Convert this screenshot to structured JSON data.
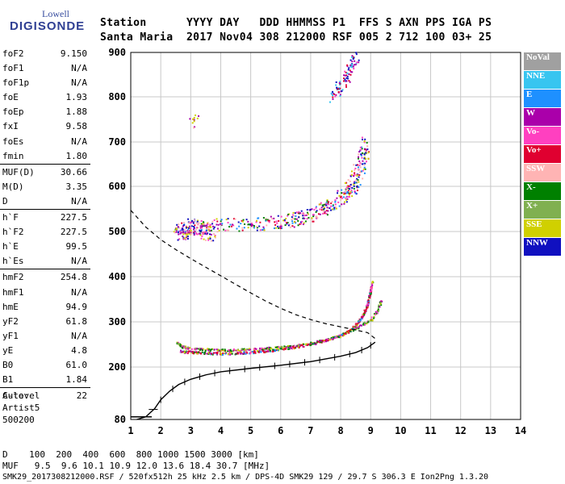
{
  "logo": {
    "line1": "Lowell",
    "line2": "DIGISONDE"
  },
  "header": {
    "row1": "Station      YYYY DAY   DDD HHMMSS P1  FFS S AXN PPS IGA PS",
    "row2": "Santa Maria  2017 Nov04 308 212000 RSF 005 2 712 100 03+ 25"
  },
  "params": [
    {
      "name": "foF2",
      "value": "9.150"
    },
    {
      "name": "foF1",
      "value": "N/A"
    },
    {
      "name": "foF1p",
      "value": "N/A"
    },
    {
      "name": "foE",
      "value": "1.93"
    },
    {
      "name": "foEp",
      "value": "1.88"
    },
    {
      "name": "fxI",
      "value": "9.58"
    },
    {
      "name": "foEs",
      "value": "N/A"
    },
    {
      "name": "fmin",
      "value": "1.80"
    },
    {
      "name": "MUF(D)",
      "value": "30.66"
    },
    {
      "name": "M(D)",
      "value": "3.35"
    },
    {
      "name": "D",
      "value": "N/A"
    },
    {
      "name": "h`F",
      "value": "227.5"
    },
    {
      "name": "h`F2",
      "value": "227.5"
    },
    {
      "name": "h`E",
      "value": "99.5"
    },
    {
      "name": "h`Es",
      "value": "N/A"
    },
    {
      "name": "hmF2",
      "value": "254.8"
    },
    {
      "name": "hmF1",
      "value": "N/A"
    },
    {
      "name": "hmE",
      "value": "94.9"
    },
    {
      "name": "yF2",
      "value": "61.8"
    },
    {
      "name": "yF1",
      "value": "N/A"
    },
    {
      "name": "yE",
      "value": "4.8"
    },
    {
      "name": "B0",
      "value": "61.0"
    },
    {
      "name": "B1",
      "value": "1.84"
    },
    {
      "name": "C-level",
      "value": "22"
    }
  ],
  "auto": {
    "line1": "Auto:",
    "line2": "Artist5",
    "line3": "500200"
  },
  "footer": {
    "d_row": "D    100  200  400  600  800 1000 1500 3000 [km]",
    "muf_row": "MUF   9.5  9.6 10.1 10.9 12.0 13.6 18.4 30.7 [MHz]",
    "info_row": "SMK29_2017308212000.RSF / 520fx512h 25 kHz 2.5 km / DPS-4D SMK29 129 / 29.7 S 306.3 E Ion2Png 1.3.20"
  },
  "legend": [
    {
      "label": "NoVal",
      "color": "#a0a0a0",
      "text": "#ffffff"
    },
    {
      "label": "NNE",
      "color": "#37c5f0",
      "text": "#ffffff"
    },
    {
      "label": "E",
      "color": "#1e90ff",
      "text": "#ffffff"
    },
    {
      "label": "W",
      "color": "#aa00aa",
      "text": "#ffffff"
    },
    {
      "label": "Vo-",
      "color": "#ff40c0",
      "text": "#ffffff"
    },
    {
      "label": "Vo+",
      "color": "#e00030",
      "text": "#ffffff"
    },
    {
      "label": "SSW",
      "color": "#ffb4b4",
      "text": "#ffffff"
    },
    {
      "label": "X-",
      "color": "#008000",
      "text": "#ffffff"
    },
    {
      "label": "X+",
      "color": "#80b050",
      "text": "#ffffff"
    },
    {
      "label": "SSE",
      "color": "#d0d000",
      "text": "#ffffff"
    },
    {
      "label": "NNW",
      "color": "#1010c0",
      "text": "#ffffff"
    }
  ],
  "chart_data": {
    "type": "scatter",
    "xlim": [
      1,
      14
    ],
    "ylim": [
      80,
      900
    ],
    "xticks": [
      1,
      2,
      3,
      4,
      5,
      6,
      7,
      8,
      9,
      10,
      11,
      12,
      13,
      14
    ],
    "yticks": [
      80,
      200,
      300,
      400,
      500,
      600,
      700,
      800,
      900
    ],
    "grid": true,
    "ordinary_trace_F": [
      [
        2.6,
        236
      ],
      [
        3.0,
        234
      ],
      [
        3.5,
        232
      ],
      [
        4.0,
        231
      ],
      [
        4.5,
        232
      ],
      [
        5.0,
        234
      ],
      [
        5.5,
        237
      ],
      [
        6.0,
        241
      ],
      [
        6.5,
        246
      ],
      [
        7.0,
        252
      ],
      [
        7.5,
        260
      ],
      [
        8.0,
        271
      ],
      [
        8.3,
        282
      ],
      [
        8.5,
        295
      ],
      [
        8.7,
        312
      ],
      [
        8.85,
        335
      ],
      [
        8.95,
        360
      ],
      [
        9.05,
        395
      ]
    ],
    "extraordinary_trace_F": [
      [
        2.5,
        256
      ],
      [
        2.7,
        246
      ],
      [
        3.0,
        242
      ],
      [
        3.5,
        240
      ],
      [
        4.0,
        239
      ],
      [
        4.5,
        239
      ],
      [
        5.0,
        240
      ],
      [
        5.5,
        242
      ],
      [
        6.0,
        245
      ],
      [
        6.5,
        249
      ],
      [
        7.0,
        254
      ],
      [
        7.5,
        261
      ],
      [
        8.0,
        272
      ],
      [
        8.5,
        287
      ],
      [
        9.0,
        306
      ],
      [
        9.2,
        325
      ],
      [
        9.35,
        350
      ]
    ],
    "second_hop": [
      [
        2.5,
        505
      ],
      [
        3.0,
        510
      ],
      [
        4.0,
        515
      ],
      [
        5.0,
        518
      ],
      [
        6.0,
        522
      ],
      [
        6.5,
        528
      ],
      [
        7.0,
        540
      ],
      [
        7.5,
        555
      ],
      [
        8.0,
        575
      ],
      [
        8.3,
        595
      ],
      [
        8.5,
        620
      ],
      [
        8.7,
        660
      ],
      [
        8.8,
        700
      ]
    ],
    "true_height_profile": [
      [
        1.2,
        80
      ],
      [
        1.5,
        86
      ],
      [
        1.8,
        105
      ],
      [
        2.0,
        125
      ],
      [
        2.3,
        145
      ],
      [
        2.6,
        160
      ],
      [
        3.0,
        172
      ],
      [
        3.5,
        182
      ],
      [
        4.0,
        189
      ],
      [
        5.0,
        197
      ],
      [
        6.0,
        204
      ],
      [
        7.0,
        212
      ],
      [
        8.0,
        224
      ],
      [
        8.5,
        232
      ],
      [
        8.9,
        243
      ],
      [
        9.15,
        255
      ]
    ],
    "model_profile": [
      [
        1.0,
        547
      ],
      [
        1.5,
        510
      ],
      [
        2.0,
        482
      ],
      [
        2.5,
        460
      ],
      [
        3.0,
        440
      ],
      [
        3.5,
        421
      ],
      [
        4.0,
        402
      ],
      [
        4.5,
        383
      ],
      [
        5.0,
        364
      ],
      [
        5.5,
        346
      ],
      [
        6.0,
        330
      ],
      [
        6.5,
        316
      ],
      [
        7.0,
        305
      ],
      [
        7.5,
        296
      ],
      [
        8.0,
        289
      ],
      [
        8.5,
        282
      ],
      [
        8.9,
        276
      ],
      [
        9.15,
        263
      ]
    ],
    "profile_markers_x": [
      2.0,
      2.4,
      2.8,
      3.3,
      3.8,
      4.3,
      4.8,
      5.3,
      5.8,
      6.3,
      6.8,
      7.3,
      7.8,
      8.3,
      8.7,
      9.0
    ]
  }
}
